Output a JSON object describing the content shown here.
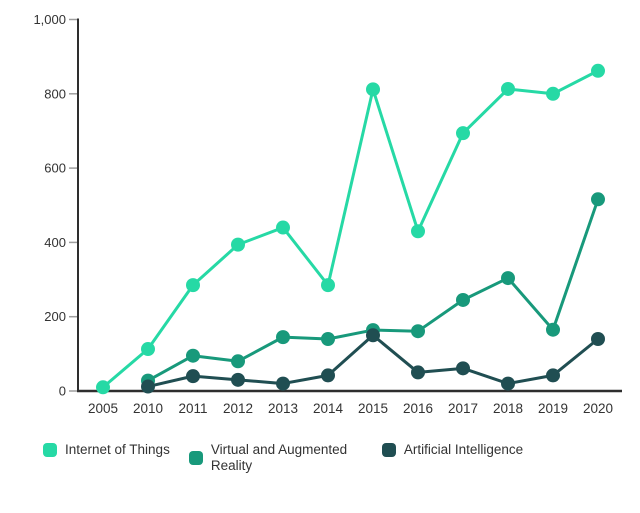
{
  "chart_data": {
    "type": "line",
    "title": "",
    "xlabel": "",
    "ylabel": "",
    "grid": false,
    "legend_position": "bottom",
    "categories": [
      "2005",
      "2010",
      "2011",
      "2012",
      "2013",
      "2014",
      "2015",
      "2016",
      "2017",
      "2018",
      "2019",
      "2020"
    ],
    "series": [
      {
        "name": "Internet of Things",
        "color": "#26d9a5",
        "values": [
          10,
          113,
          285,
          394,
          440,
          285,
          812,
          430,
          694,
          813,
          800,
          862
        ]
      },
      {
        "name": "Virtual and Augmented Reality",
        "color": "#18997b",
        "values": [
          null,
          28,
          95,
          80,
          145,
          140,
          164,
          161,
          245,
          304,
          165,
          516
        ]
      },
      {
        "name": "Artificial Intelligence",
        "color": "#204e52",
        "values": [
          null,
          12,
          40,
          30,
          20,
          42,
          150,
          50,
          61,
          20,
          42,
          140
        ]
      }
    ],
    "ylim": [
      0,
      1000
    ],
    "yticks": [
      0,
      200,
      400,
      600,
      800,
      1000
    ],
    "ytick_labels": [
      "0",
      "200",
      "400",
      "600",
      "800",
      "1,000"
    ],
    "styles": {
      "axis_color": "#2e2e2e",
      "tick_color": "#9e9e9e",
      "label_color": "#333333",
      "line_width": 3,
      "dot_radius": 7
    }
  }
}
